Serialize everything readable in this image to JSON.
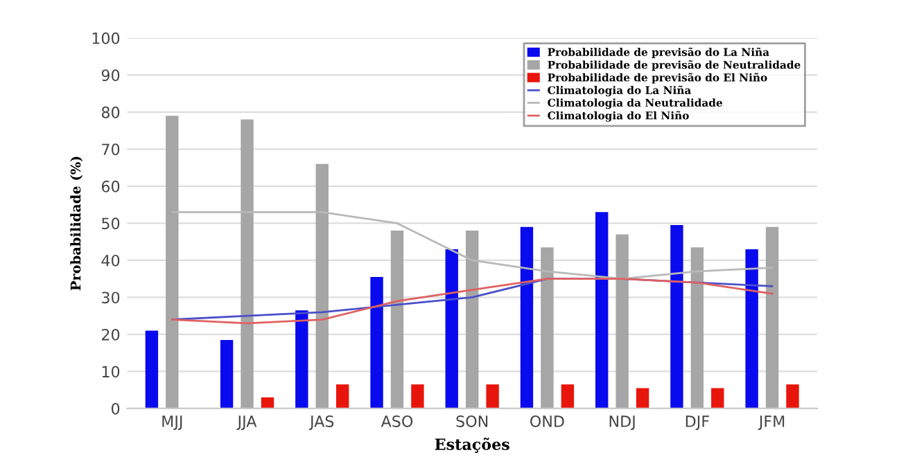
{
  "chart_data": {
    "type": "bar",
    "xlabel": "Estações",
    "ylabel": "Probabilidade (%)",
    "categories": [
      "MJJ",
      "JJA",
      "JAS",
      "ASO",
      "SON",
      "OND",
      "NDJ",
      "DJF",
      "JFM"
    ],
    "series": [
      {
        "name": "Probabilidade de previsão do La Niña",
        "color": "#0a0aee",
        "values": [
          21,
          18.5,
          26.5,
          35.5,
          43,
          49,
          53,
          49.5,
          43
        ]
      },
      {
        "name": "Probabilidade de previsão de Neutralidade",
        "color": "#a6a6a6",
        "values": [
          79,
          78,
          66,
          48,
          48,
          43.5,
          47,
          43.5,
          49
        ]
      },
      {
        "name": "Probabilidade de previsão do El Niño",
        "color": "#e8150c",
        "values": [
          0,
          3,
          6.5,
          6.5,
          6.5,
          6.5,
          5.5,
          5.5,
          6.5
        ]
      },
      {
        "name": "Climatologia do La Niña",
        "type": "line",
        "color": "#4a50c8",
        "values": [
          24,
          25,
          26,
          28,
          30,
          35,
          35,
          34,
          33
        ]
      },
      {
        "name": "Climatologia da Neutralidade",
        "type": "line",
        "color": "#b8b8b8",
        "values": [
          53,
          53,
          53,
          50,
          40,
          37,
          35,
          37,
          38
        ]
      },
      {
        "name": "Climatologia do El Niño",
        "type": "line",
        "color": "#e06060",
        "values": [
          24,
          23,
          24,
          29,
          32,
          35,
          35,
          34,
          31
        ]
      }
    ],
    "ylim": [
      0,
      100
    ],
    "yticks": [
      0,
      10,
      20,
      30,
      40,
      50,
      60,
      70,
      80,
      90,
      100
    ],
    "grid": "y",
    "legend": "top right"
  }
}
